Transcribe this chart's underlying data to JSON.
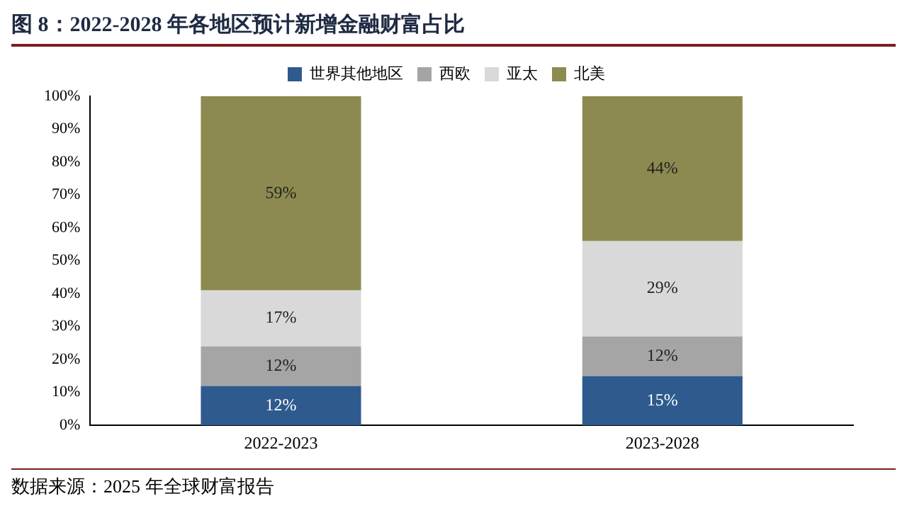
{
  "chart_data": {
    "type": "bar",
    "title": "图 8：2022-2028 年各地区预计新增金融财富占比",
    "categories": [
      "2022-2023",
      "2023-2028"
    ],
    "stacked": true,
    "series": [
      {
        "name": "世界其他地区",
        "color": "#2e5a8e",
        "values": [
          12,
          15
        ],
        "value_labels": [
          "12%",
          "15%"
        ]
      },
      {
        "name": "西欧",
        "color": "#a5a5a5",
        "values": [
          12,
          12
        ],
        "value_labels": [
          "12%",
          "12%"
        ]
      },
      {
        "name": "亚太",
        "color": "#d9d9d9",
        "values": [
          17,
          29
        ],
        "value_labels": [
          "17%",
          "29%"
        ]
      },
      {
        "name": "北美",
        "color": "#8c8a50",
        "values": [
          59,
          44
        ],
        "value_labels": [
          "59%",
          "44%"
        ]
      }
    ],
    "ylim": [
      0,
      100
    ],
    "yticks": [
      {
        "value": 0,
        "label": "0%"
      },
      {
        "value": 10,
        "label": "10%"
      },
      {
        "value": 20,
        "label": "20%"
      },
      {
        "value": 30,
        "label": "30%"
      },
      {
        "value": 40,
        "label": "40%"
      },
      {
        "value": 50,
        "label": "50%"
      },
      {
        "value": 60,
        "label": "60%"
      },
      {
        "value": 70,
        "label": "70%"
      },
      {
        "value": 80,
        "label": "80%"
      },
      {
        "value": 90,
        "label": "90%"
      },
      {
        "value": 100,
        "label": "100%"
      }
    ],
    "grid": false,
    "legend": "top",
    "annotations": [
      "数据来源：2025 年全球财富报告"
    ]
  }
}
